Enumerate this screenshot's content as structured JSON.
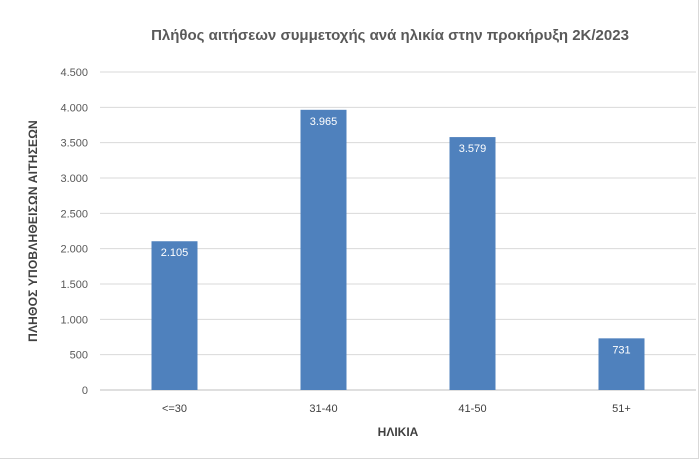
{
  "chart_data": {
    "type": "bar",
    "title": "Πλήθος αιτήσεων συμμετοχής ανά ηλικία στην προκήρυξη 2Κ/2023",
    "xlabel": "ΗΛΙΚΙΑ",
    "ylabel": "ΠΛΗΘΟΣ ΥΠΟΒΛΗΘΕΙΣΩΝ ΑΙΤΗΣΕΩΝ",
    "categories": [
      "<=30",
      "31-40",
      "41-50",
      "51+"
    ],
    "values": [
      2105,
      3965,
      3579,
      731
    ],
    "value_labels": [
      "2.105",
      "3.965",
      "3.579",
      "731"
    ],
    "ylim": [
      0,
      4500
    ],
    "yticks": [
      0,
      500,
      1000,
      1500,
      2000,
      2500,
      3000,
      3500,
      4000,
      4500
    ],
    "ytick_labels": [
      "0",
      "500",
      "1.000",
      "1.500",
      "2.000",
      "2.500",
      "3.000",
      "3.500",
      "4.000",
      "4.500"
    ],
    "grid": true,
    "legend": "none",
    "bar_color": "#4f81bd",
    "grid_color": "#d9d9d9"
  }
}
